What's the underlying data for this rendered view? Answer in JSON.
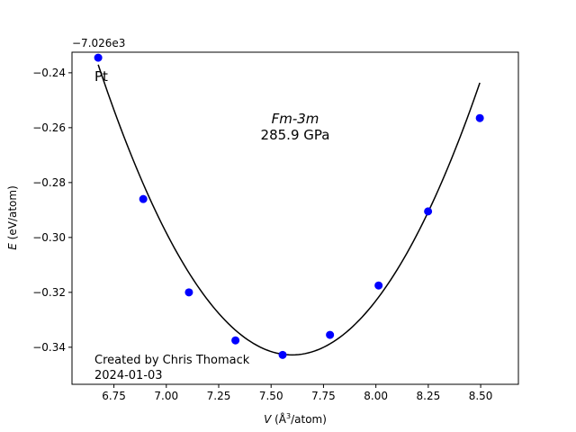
{
  "chart_data": {
    "type": "scatter",
    "xlabel_var": "V",
    "xlabel_unit": "(Å",
    "xlabel_sup": "3",
    "xlabel_tail": "/atom)",
    "ylabel_var": "E",
    "ylabel_unit": "(eV/atom)",
    "offset_label": "−7.026e3",
    "xlim": [
      6.55,
      8.68
    ],
    "ylim": [
      -0.3535,
      -0.2325
    ],
    "x_ticks": [
      6.75,
      7.0,
      7.25,
      7.5,
      7.75,
      8.0,
      8.25,
      8.5
    ],
    "x_tick_labels": [
      "6.75",
      "7.00",
      "7.25",
      "7.50",
      "7.75",
      "8.00",
      "8.25",
      "8.50"
    ],
    "y_ticks": [
      -0.24,
      -0.26,
      -0.28,
      -0.3,
      -0.32,
      -0.34
    ],
    "y_tick_labels": [
      "−0.24",
      "−0.26",
      "−0.28",
      "−0.30",
      "−0.32",
      "−0.34"
    ],
    "points": {
      "x": [
        6.675,
        6.89,
        7.108,
        7.33,
        7.555,
        7.781,
        8.013,
        8.249,
        8.496
      ],
      "y": [
        -0.2345,
        -0.286,
        -0.32,
        -0.3375,
        -0.3428,
        -0.3355,
        -0.3175,
        -0.2905,
        -0.2565
      ],
      "color": "#0000ff"
    },
    "fit": {
      "x_min": 6.675,
      "x_max": 8.496,
      "vertex_x": 7.6,
      "vertex_y": -0.3428,
      "curv_left": 0.1236,
      "curv_right": 0.1235,
      "color": "#000000"
    },
    "annotations": {
      "element": "Pt",
      "space_group": "Fm-3m",
      "bulk_modulus": "285.9 GPa",
      "credit_line1": "Created by Chris Thomack",
      "credit_line2": "2024-01-03"
    }
  }
}
